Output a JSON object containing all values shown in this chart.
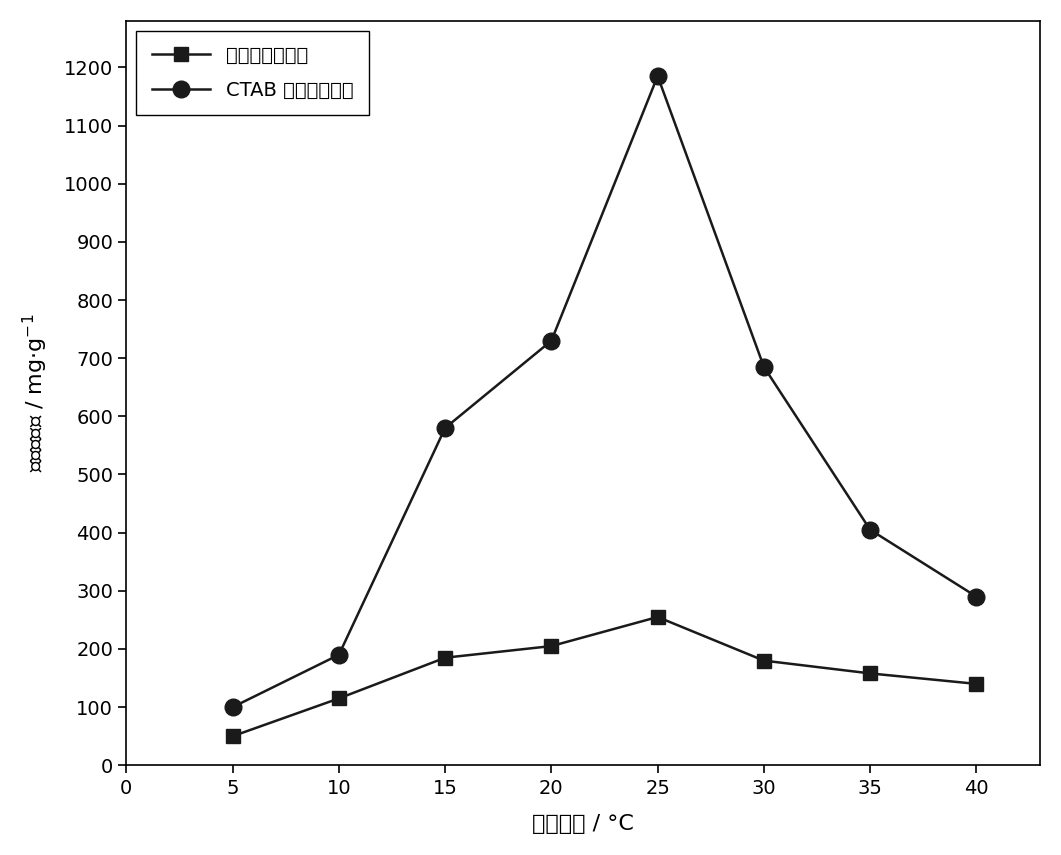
{
  "x": [
    5,
    10,
    15,
    20,
    25,
    30,
    35,
    40
  ],
  "series1_y": [
    50,
    115,
    185,
    205,
    255,
    180,
    158,
    140
  ],
  "series2_y": [
    100,
    190,
    580,
    730,
    1185,
    685,
    405,
    290
  ],
  "series1_label": "未改性膨胀石墨",
  "series2_label": "CTAB 改性膨胀石墨",
  "xlabel": "吸附温度 / °C",
  "ylabel": "饱和吸附量 / mg·g⁻¹",
  "xlim": [
    0,
    43
  ],
  "ylim": [
    0,
    1280
  ],
  "xticks": [
    0,
    5,
    10,
    15,
    20,
    25,
    30,
    35,
    40
  ],
  "yticks": [
    0,
    100,
    200,
    300,
    400,
    500,
    600,
    700,
    800,
    900,
    1000,
    1100,
    1200
  ],
  "line_color": "#1a1a1a",
  "marker_square": "s",
  "marker_circle": "o",
  "marker_size_square": 10,
  "marker_size_circle": 12,
  "linewidth": 1.8,
  "background_color": "#ffffff",
  "legend_loc": "upper left"
}
